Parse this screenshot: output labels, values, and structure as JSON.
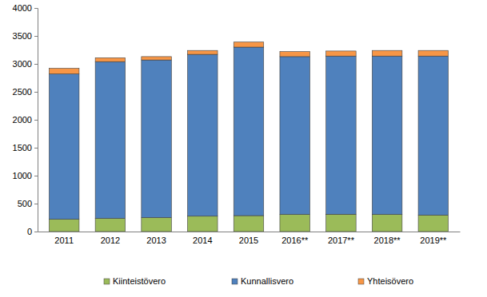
{
  "chart_data": {
    "type": "bar",
    "stacked": true,
    "grid": false,
    "legend": "bottom",
    "categories": [
      "2011",
      "2012",
      "2013",
      "2014",
      "2015",
      "2016**",
      "2017**",
      "2018**",
      "2019**"
    ],
    "series": [
      {
        "name": "Kiinteistövero",
        "color": "#9bbb59",
        "values": [
          220,
          235,
          250,
          275,
          285,
          305,
          310,
          305,
          295
        ]
      },
      {
        "name": "Kunnallisvero",
        "color": "#4f81bd",
        "values": [
          2600,
          2805,
          2820,
          2895,
          3015,
          2825,
          2830,
          2835,
          2845
        ]
      },
      {
        "name": "Yhteisövero",
        "color": "#f79646",
        "values": [
          100,
          70,
          60,
          70,
          90,
          90,
          90,
          100,
          100
        ]
      }
    ],
    "ylim": [
      0,
      4000
    ],
    "yticks": [
      0,
      500,
      1000,
      1500,
      2000,
      2500,
      3000,
      3500,
      4000
    ]
  }
}
